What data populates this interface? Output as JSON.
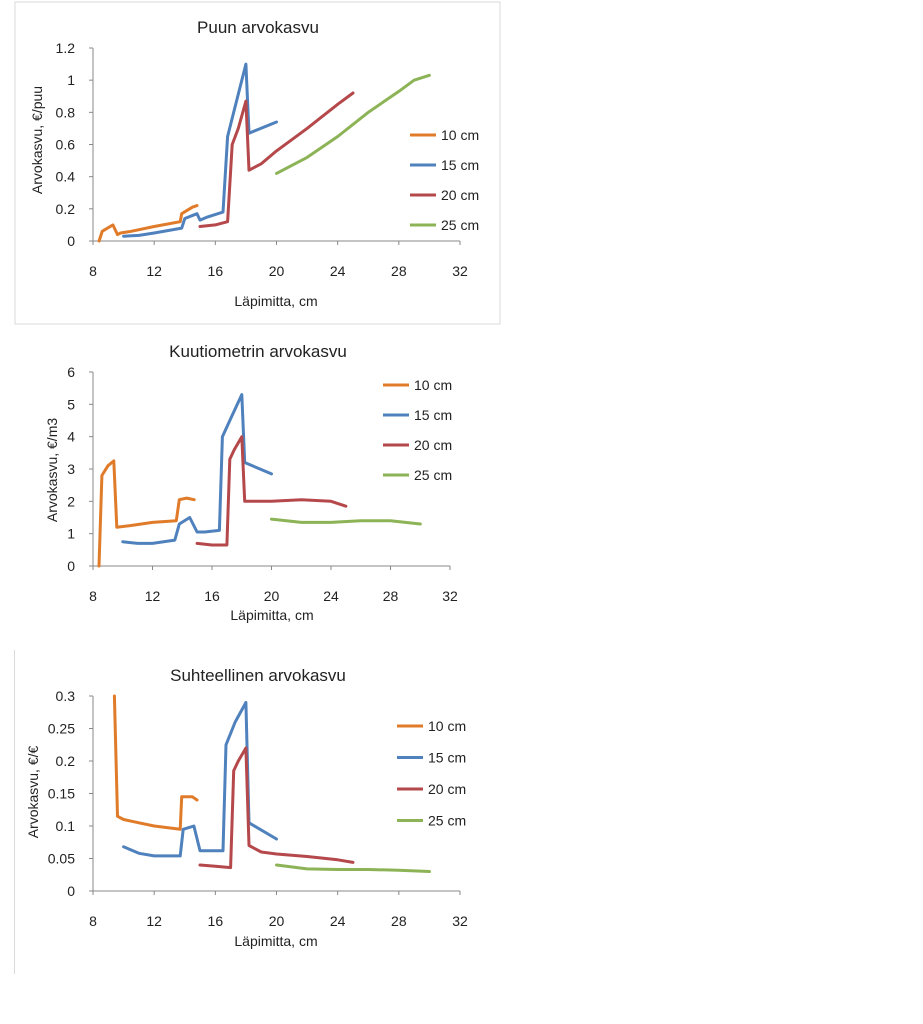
{
  "colors": {
    "10 cm": "#E07B2A",
    "15 cm": "#4F81BD",
    "20 cm": "#B5484B",
    "25 cm": "#8DB357",
    "axis": "#888888"
  },
  "chart_data": [
    {
      "type": "line",
      "title": "Puun arvokasvu",
      "xlabel": "Läpimitta, cm",
      "ylabel": "Arvokasvu, €/puu",
      "xlim": [
        8,
        32
      ],
      "ylim": [
        0,
        1.2
      ],
      "xticks": [
        "8",
        "12",
        "16",
        "20",
        "24",
        "28",
        "32"
      ],
      "yticks": [
        "0",
        "0.2",
        "0.4",
        "0.6",
        "0.8",
        "1",
        "1.2"
      ],
      "legend": [
        "10 cm",
        "15 cm",
        "20 cm",
        "25 cm"
      ],
      "series": [
        {
          "name": "10 cm",
          "x": [
            8.4,
            8.6,
            9.3,
            9.6,
            9.8,
            10.5,
            12,
            13.7,
            13.8,
            14.5,
            14.8
          ],
          "y": [
            0,
            0.06,
            0.1,
            0.04,
            0.05,
            0.06,
            0.09,
            0.12,
            0.17,
            0.21,
            0.22
          ]
        },
        {
          "name": "15 cm",
          "x": [
            10,
            11,
            12,
            13.8,
            14,
            14.8,
            15,
            15.5,
            16.5,
            16.8,
            17.2,
            18,
            18.2,
            20
          ],
          "y": [
            0.03,
            0.035,
            0.05,
            0.08,
            0.14,
            0.17,
            0.13,
            0.15,
            0.18,
            0.65,
            0.8,
            1.1,
            0.67,
            0.74
          ]
        },
        {
          "name": "20 cm",
          "x": [
            15,
            16,
            16.8,
            17.1,
            17.5,
            18,
            18.2,
            19,
            20,
            22,
            24,
            25
          ],
          "y": [
            0.09,
            0.1,
            0.12,
            0.6,
            0.7,
            0.87,
            0.44,
            0.48,
            0.56,
            0.7,
            0.85,
            0.92
          ]
        },
        {
          "name": "25 cm",
          "x": [
            20,
            22,
            24,
            26,
            28,
            29,
            30
          ],
          "y": [
            0.42,
            0.52,
            0.65,
            0.8,
            0.93,
            1.0,
            1.03
          ]
        }
      ]
    },
    {
      "type": "line",
      "title": "Kuutiometrin arvokasvu",
      "xlabel": "Läpimitta, cm",
      "ylabel": "Arvokasvu, €/m3",
      "xlim": [
        8,
        32
      ],
      "ylim": [
        0,
        6
      ],
      "xticks": [
        "8",
        "12",
        "16",
        "20",
        "24",
        "28",
        "32"
      ],
      "yticks": [
        "0",
        "1",
        "2",
        "3",
        "4",
        "5",
        "6"
      ],
      "legend": [
        "10 cm",
        "15 cm",
        "20 cm",
        "25 cm"
      ],
      "series": [
        {
          "name": "10 cm",
          "x": [
            8.4,
            8.6,
            9.0,
            9.4,
            9.6,
            10.5,
            12,
            13.6,
            13.8,
            14.3,
            14.8
          ],
          "y": [
            0,
            2.8,
            3.1,
            3.25,
            1.2,
            1.25,
            1.35,
            1.4,
            2.05,
            2.1,
            2.05
          ]
        },
        {
          "name": "15 cm",
          "x": [
            10,
            11,
            12,
            13.5,
            13.8,
            14.5,
            15,
            15.5,
            16.5,
            16.7,
            17.3,
            18,
            18.2,
            20
          ],
          "y": [
            0.75,
            0.7,
            0.7,
            0.8,
            1.3,
            1.5,
            1.05,
            1.05,
            1.1,
            4.0,
            4.6,
            5.3,
            3.2,
            2.85
          ]
        },
        {
          "name": "20 cm",
          "x": [
            15,
            16,
            17,
            17.2,
            17.5,
            18,
            18.2,
            19,
            20,
            22,
            24,
            25
          ],
          "y": [
            0.7,
            0.65,
            0.65,
            3.3,
            3.6,
            4.0,
            2.0,
            2.0,
            2.0,
            2.05,
            2.0,
            1.85
          ]
        },
        {
          "name": "25 cm",
          "x": [
            20,
            22,
            24,
            26,
            28,
            29,
            30
          ],
          "y": [
            1.45,
            1.35,
            1.35,
            1.4,
            1.4,
            1.35,
            1.3
          ]
        }
      ]
    },
    {
      "type": "line",
      "title": "Suhteellinen arvokasvu",
      "xlabel": "Läpimitta, cm",
      "ylabel": "Arvokasvu, €/€",
      "xlim": [
        8,
        32
      ],
      "ylim": [
        0,
        0.3
      ],
      "xticks": [
        "8",
        "12",
        "16",
        "20",
        "24",
        "28",
        "32"
      ],
      "yticks": [
        "0",
        "0.05",
        "0.1",
        "0.15",
        "0.2",
        "0.25",
        "0.3"
      ],
      "legend": [
        "10 cm",
        "15 cm",
        "20 cm",
        "25 cm"
      ],
      "series": [
        {
          "name": "10 cm",
          "x": [
            9.4,
            9.6,
            10,
            11,
            12,
            13.7,
            13.8,
            14.5,
            14.8
          ],
          "y": [
            0.3,
            0.115,
            0.11,
            0.105,
            0.1,
            0.095,
            0.145,
            0.145,
            0.14
          ]
        },
        {
          "name": "15 cm",
          "x": [
            10,
            11,
            12,
            13.7,
            13.9,
            14.6,
            15,
            16.5,
            16.7,
            17.3,
            18,
            18.2,
            20
          ],
          "y": [
            0.068,
            0.058,
            0.054,
            0.054,
            0.095,
            0.1,
            0.062,
            0.062,
            0.225,
            0.26,
            0.29,
            0.105,
            0.08
          ]
        },
        {
          "name": "20 cm",
          "x": [
            15,
            16,
            17,
            17.2,
            17.5,
            18,
            18.2,
            19,
            20,
            22,
            24,
            25
          ],
          "y": [
            0.04,
            0.038,
            0.036,
            0.185,
            0.2,
            0.22,
            0.07,
            0.06,
            0.057,
            0.053,
            0.048,
            0.044
          ]
        },
        {
          "name": "25 cm",
          "x": [
            20,
            22,
            24,
            26,
            28,
            30
          ],
          "y": [
            0.04,
            0.034,
            0.033,
            0.033,
            0.032,
            0.03
          ]
        }
      ]
    }
  ]
}
